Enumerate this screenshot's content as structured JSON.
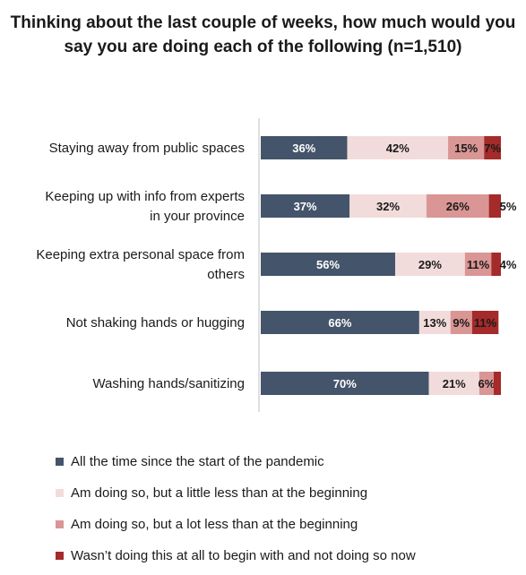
{
  "chart_data": {
    "type": "bar",
    "orientation": "horizontal",
    "stacked": true,
    "title": "Thinking about the last couple of weeks, how much would you say you are doing each of the following (n=1,510)",
    "categories": [
      [
        "Staying away from public spaces"
      ],
      [
        "Keeping up with info from experts",
        "in your province"
      ],
      [
        "Keeping extra personal space from",
        "others"
      ],
      [
        "Not shaking hands or hugging"
      ],
      [
        "Washing hands/sanitizing"
      ]
    ],
    "series": [
      {
        "name": "All the time since the start of the pandemic",
        "color": "#44546a",
        "text_color": "#ffffff",
        "values": [
          36,
          37,
          56,
          66,
          70
        ],
        "labels": [
          "36%",
          "37%",
          "56%",
          "66%",
          "70%"
        ]
      },
      {
        "name": "Am doing so, but a little less than at the beginning",
        "color": "#f2dcdb",
        "text_color": "#1a1a1a",
        "values": [
          42,
          32,
          29,
          13,
          21
        ],
        "labels": [
          "42%",
          "32%",
          "29%",
          "13%",
          "21%"
        ]
      },
      {
        "name": "Am doing so, but a lot less than at the beginning",
        "color": "#d99694",
        "text_color": "#1a1a1a",
        "values": [
          15,
          26,
          11,
          9,
          6
        ],
        "labels": [
          "15%",
          "26%",
          "11%",
          "9%",
          "6%"
        ]
      },
      {
        "name": "Wasn’t doing this at all to begin with and not doing so now",
        "color": "#a52a2a",
        "text_color": "#1a1a1a",
        "values": [
          7,
          5,
          4,
          11,
          3
        ],
        "labels": [
          "7%",
          "5%",
          "4%",
          "11%",
          ""
        ]
      }
    ],
    "xlim": [
      0,
      100
    ],
    "grid": false,
    "legend_position": "bottom"
  }
}
